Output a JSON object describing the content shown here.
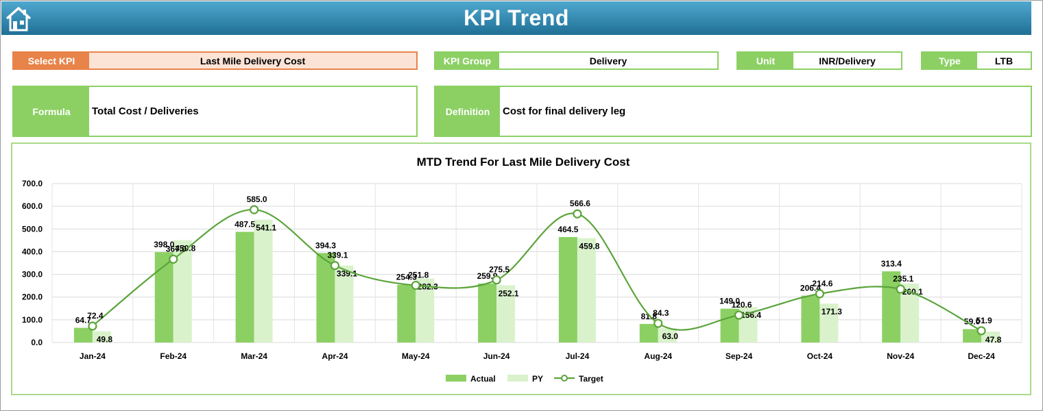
{
  "header": {
    "title": "KPI Trend",
    "home_icon": "home-icon"
  },
  "fields": {
    "select_kpi": {
      "label": "Select KPI",
      "value": "Last Mile Delivery Cost"
    },
    "kpi_group": {
      "label": "KPI Group",
      "value": "Delivery"
    },
    "unit": {
      "label": "Unit",
      "value": "INR/Delivery"
    },
    "type": {
      "label": "Type",
      "value": "LTB"
    },
    "formula": {
      "label": "Formula",
      "value": "Total Cost / Deliveries"
    },
    "definition": {
      "label": "Definition",
      "value": "Cost for final delivery leg"
    }
  },
  "colors": {
    "accent_green": "#8cd064",
    "select_orange": "#e8834a",
    "py_light": "#d9f2cc",
    "target_line": "#5aa43a"
  },
  "chart_data": {
    "type": "bar",
    "title": "MTD Trend For Last Mile Delivery Cost",
    "categories": [
      "Jan-24",
      "Feb-24",
      "Mar-24",
      "Apr-24",
      "May-24",
      "Jun-24",
      "Jul-24",
      "Aug-24",
      "Sep-24",
      "Oct-24",
      "Nov-24",
      "Dec-24"
    ],
    "series": [
      {
        "name": "Actual",
        "kind": "bar",
        "values": [
          64.7,
          398.0,
          487.5,
          394.3,
          254.3,
          259.9,
          464.5,
          81.8,
          149.0,
          206.4,
          313.4,
          59.0
        ]
      },
      {
        "name": "PY",
        "kind": "bar",
        "values": [
          49.8,
          450.8,
          541.1,
          339.1,
          282.3,
          252.1,
          459.8,
          63.0,
          156.4,
          171.3,
          260.1,
          47.8
        ]
      },
      {
        "name": "Target",
        "kind": "line",
        "values": [
          72.4,
          367.0,
          585.0,
          339.1,
          251.8,
          275.5,
          566.6,
          84.3,
          120.6,
          214.6,
          235.1,
          51.9
        ]
      }
    ],
    "ylim": [
      0,
      700
    ],
    "yticks": [
      "0.0",
      "100.0",
      "200.0",
      "300.0",
      "400.0",
      "500.0",
      "600.0",
      "700.0"
    ],
    "grid": true,
    "legend": "bottom"
  }
}
